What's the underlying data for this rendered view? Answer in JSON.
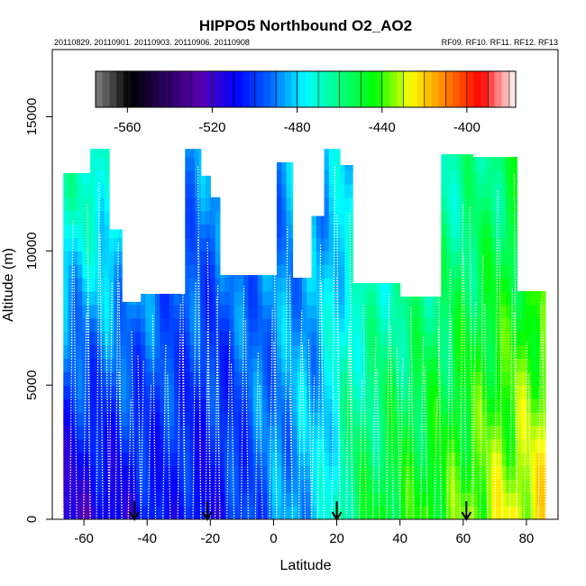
{
  "chart_data": {
    "type": "heatmap",
    "title": "HIPPO5 Northbound O2_AO2",
    "subtitle_left": "20110829. 20110901. 20110903. 20110906. 20110908",
    "subtitle_right": "RF09. RF10. RF11. RF12. RF13",
    "xlabel": "Latitude",
    "ylabel": "Altitude (m)",
    "xlim": [
      -70,
      90
    ],
    "ylim": [
      0,
      17500
    ],
    "x_ticks": [
      -60,
      -40,
      -20,
      0,
      20,
      40,
      60,
      80
    ],
    "y_ticks": [
      0,
      5000,
      10000,
      15000
    ],
    "colorbar": {
      "min": -575,
      "max": -377,
      "ticks": [
        -560,
        -520,
        -480,
        -440,
        -400
      ],
      "tick_labels": [
        "-560",
        "-520",
        "-480",
        "-440",
        "-400"
      ],
      "palette": [
        "#808080",
        "#000000",
        "#2a0060",
        "#5a00b0",
        "#0000ff",
        "#0066ff",
        "#00ffff",
        "#00ff80",
        "#00ff00",
        "#ffff00",
        "#ff8000",
        "#ff0000",
        "#ffffff"
      ]
    },
    "columns": [
      {
        "lat_min": -66.5,
        "lat_max": -58,
        "top": 12900
      },
      {
        "lat_min": -58,
        "lat_max": -52,
        "top": 13800
      },
      {
        "lat_min": -52,
        "lat_max": -48,
        "top": 10800
      },
      {
        "lat_min": -48,
        "lat_max": -42,
        "top": 8100
      },
      {
        "lat_min": -42,
        "lat_max": -28,
        "top": 8400
      },
      {
        "lat_min": -28,
        "lat_max": -23,
        "top": 13800
      },
      {
        "lat_min": -23,
        "lat_max": -20,
        "top": 12800
      },
      {
        "lat_min": -20,
        "lat_max": -17,
        "top": 12000
      },
      {
        "lat_min": -17,
        "lat_max": 1,
        "top": 9100
      },
      {
        "lat_min": 1,
        "lat_max": 6,
        "top": 13300
      },
      {
        "lat_min": 6,
        "lat_max": 12,
        "top": 9000
      },
      {
        "lat_min": 12,
        "lat_max": 16,
        "top": 11300
      },
      {
        "lat_min": 16,
        "lat_max": 21,
        "top": 13800
      },
      {
        "lat_min": 21,
        "lat_max": 25,
        "top": 13200
      },
      {
        "lat_min": 25,
        "lat_max": 40,
        "top": 8800
      },
      {
        "lat_min": 40,
        "lat_max": 53,
        "top": 8300
      },
      {
        "lat_min": 53,
        "lat_max": 63,
        "top": 13600
      },
      {
        "lat_min": 63,
        "lat_max": 77,
        "top": 13500
      },
      {
        "lat_min": 77,
        "lat_max": 86,
        "top": 8500
      }
    ],
    "value_at_lat_low_alt": [
      {
        "lat": -66,
        "value": -520
      },
      {
        "lat": -50,
        "value": -515
      },
      {
        "lat": -35,
        "value": -505
      },
      {
        "lat": -20,
        "value": -510
      },
      {
        "lat": 0,
        "value": -490
      },
      {
        "lat": 15,
        "value": -480
      },
      {
        "lat": 25,
        "value": -455
      },
      {
        "lat": 40,
        "value": -445
      },
      {
        "lat": 55,
        "value": -440
      },
      {
        "lat": 70,
        "value": -430
      },
      {
        "lat": 86,
        "value": -425
      }
    ],
    "value_at_lat_high_alt": [
      {
        "lat": -66,
        "value": -468
      },
      {
        "lat": -50,
        "value": -470
      },
      {
        "lat": -35,
        "value": -488
      },
      {
        "lat": -20,
        "value": -490
      },
      {
        "lat": 0,
        "value": -488
      },
      {
        "lat": 15,
        "value": -485
      },
      {
        "lat": 25,
        "value": -478
      },
      {
        "lat": 40,
        "value": -472
      },
      {
        "lat": 55,
        "value": -465
      },
      {
        "lat": 70,
        "value": -458
      },
      {
        "lat": 86,
        "value": -448
      }
    ],
    "flight_markers_lat": [
      -44,
      -21,
      20,
      61
    ]
  }
}
